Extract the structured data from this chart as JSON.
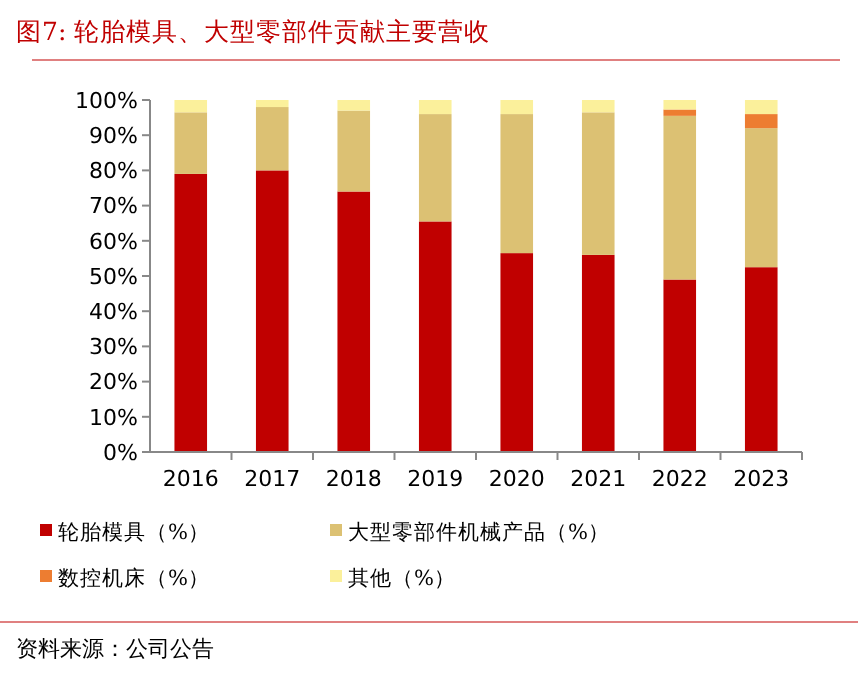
{
  "chart_data": {
    "type": "bar",
    "title": "图7:  轮胎模具、大型零部件贡献主要营收",
    "stacked": true,
    "categories": [
      "2016",
      "2017",
      "2018",
      "2019",
      "2020",
      "2021",
      "2022",
      "2023"
    ],
    "series": [
      {
        "name": "轮胎模具（%）",
        "color": "#c00000",
        "values": [
          79,
          80,
          74,
          65.5,
          56.5,
          56,
          49,
          52.5
        ]
      },
      {
        "name": "大型零部件机械产品（%）",
        "color": "#dcc173",
        "values": [
          17.5,
          18,
          23,
          30.5,
          39.5,
          40.5,
          46.5,
          39.5
        ]
      },
      {
        "name": "数控机床（%）",
        "color": "#ed7d31",
        "values": [
          0,
          0,
          0,
          0,
          0,
          0,
          1.8,
          4
        ]
      },
      {
        "name": "其他（%）",
        "color": "#fbf09b",
        "values": [
          3.5,
          2,
          3,
          4,
          4,
          3.5,
          2.7,
          4
        ]
      }
    ],
    "ylim": [
      0,
      100
    ],
    "yticks": [
      {
        "value": 0,
        "label": "0%"
      },
      {
        "value": 10,
        "label": "10%"
      },
      {
        "value": 20,
        "label": "20%"
      },
      {
        "value": 30,
        "label": "30%"
      },
      {
        "value": 40,
        "label": "40%"
      },
      {
        "value": 50,
        "label": "50%"
      },
      {
        "value": 60,
        "label": "60%"
      },
      {
        "value": 70,
        "label": "70%"
      },
      {
        "value": 80,
        "label": "80%"
      },
      {
        "value": 90,
        "label": "90%"
      },
      {
        "value": 100,
        "label": "100%"
      }
    ],
    "legend": "bottom",
    "annotations": [
      "资料来源：公司公告"
    ]
  }
}
